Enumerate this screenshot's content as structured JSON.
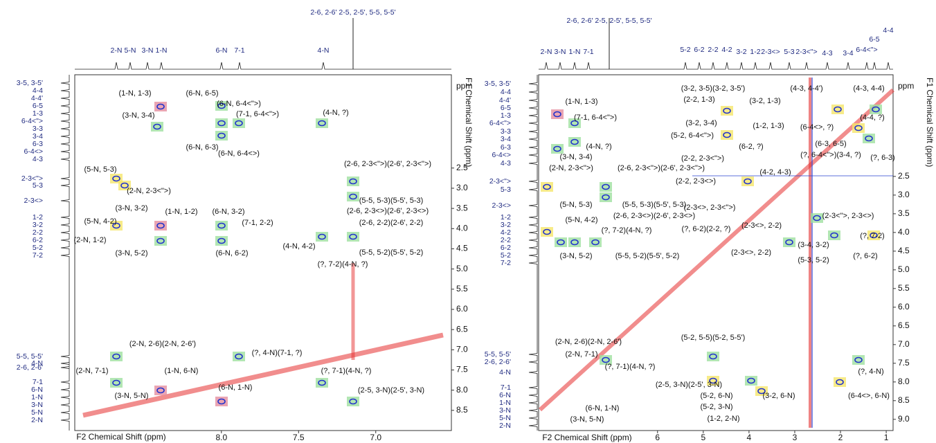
{
  "panels": [
    {
      "x_axis": {
        "title": "F2 Chemical Shift (ppm)",
        "lim": [
          8.95,
          6.51
        ],
        "ticks": [
          {
            "value": 8,
            "label": "8.0"
          },
          7.5,
          {
            "value": 7,
            "label": "7.0"
          }
        ]
      },
      "y_axis": {
        "title": "F1 Chemical Shift (ppm)",
        "unit": "ppm",
        "lim": [
          0.19,
          9.0
        ],
        "ticks": [
          2.5,
          {
            "value": 3,
            "label": "3.0"
          },
          3.5,
          {
            "value": 4,
            "label": "4.0"
          },
          4.5,
          {
            "value": 5,
            "label": "5.0"
          },
          5.5,
          {
            "value": 6,
            "label": "6.0"
          },
          6.5,
          {
            "value": 7,
            "label": "7.0"
          },
          7.5,
          {
            "value": 8,
            "label": "8.0"
          },
          8.5
        ]
      },
      "top_labels": [
        "2-6, 2-6' 2-5, 2-5', 5-5, 5-5'",
        "2-N",
        "5-N",
        "3-N",
        "1-N",
        "6-N",
        "7-1",
        "4-N"
      ],
      "side_labels": [
        "3-5, 3-5'",
        "4-4",
        "4-4'",
        "6-5",
        "1-3",
        "6-4<\">",
        "3-3",
        "3-4",
        "6-3",
        "6-4<>",
        "4-3",
        "2-3<\">",
        "5-3",
        "2-3<>",
        "1-2",
        "3-2",
        "2-2",
        "6-2",
        "5-2",
        "7-2",
        "5-5, 5-5'",
        "2-6, 2-6'",
        "4-N",
        "7-1",
        "6-N",
        "1-N",
        "3-N",
        "5-N",
        "2-N"
      ],
      "peak_labels": [
        "(1-N, 1-3)",
        "(3-N, 3-4)",
        "(6-N, 6-5)",
        "(6-N, 6-4<\">)",
        "(7-1, 6-4<\">)",
        "(4-N, ?)",
        "(6-N, 6-3)",
        "(6-N, 6-4<>)",
        "(2-6, 2-3<\">)(2-6', 2-3<\">)",
        "(5-N, 5-3)",
        "(2-N, 2-3<\">)",
        "(5-5, 5-3)(5-5', 5-3)",
        "(2-6, 2-3<>)(2-6', 2-3<>)",
        "(3-N, 3-2)",
        "(1-N, 1-2)",
        "(6-N, 3-2)",
        "(5-N, 4-2)",
        "(7-1, 2-2)",
        "(2-6, 2-2)(2-6', 2-2)",
        "(2-N, 1-2)",
        "(3-N, 5-2)",
        "(6-N, 6-2)",
        "(4-N, 4-2)",
        "(5-5, 5-2)(5-5', 5-2)",
        "(?, 7-2)(4-N, ?)",
        "(2-N, 2-6)(2-N, 2-6')",
        "(?, 4-N)(7-1, ?)",
        "(2-N, 7-1)",
        "(1-N, 6-N)",
        "(?, 7-1)(4-N, ?)",
        "(3-N, 5-N)",
        "(6-N, 1-N)",
        "(2-5, 3-N)(2-5', 3-N)"
      ]
    },
    {
      "x_axis": {
        "title": "F2 Chemical Shift (ppm)",
        "lim": [
          8.6,
          0.85
        ],
        "ticks": [
          6,
          5,
          4,
          3,
          2,
          1
        ]
      },
      "y_axis": {
        "title": "F1 Chemical Shift (ppm)",
        "unit": "ppm",
        "lim": [
          -0.22,
          9.3
        ],
        "ticks": [
          2.5,
          {
            "value": 3,
            "label": "3.0"
          },
          3.5,
          {
            "value": 4,
            "label": "4.0"
          },
          4.5,
          {
            "value": 5,
            "label": "5.0"
          },
          5.5,
          {
            "value": 6,
            "label": "6.0"
          },
          6.5,
          {
            "value": 7,
            "label": "7.0"
          },
          7.5,
          {
            "value": 8,
            "label": "8.0"
          },
          8.5,
          {
            "value": 9,
            "label": "9.0"
          }
        ]
      },
      "top_labels": [
        "2-6, 2-6' 2-5, 2-5', 5-5, 5-5'",
        "2-N",
        "3-N",
        "1-N",
        "7-1",
        "5-2",
        "6-2",
        "2-2",
        "4-2",
        "3-2",
        "1-2",
        "2-3<>",
        "5-3",
        "2-3<\">",
        "4-3",
        "3-4",
        "6-4<\">",
        "6-5",
        "4-4"
      ],
      "side_labels": [
        "3-5, 3-5'",
        "4-4",
        "4-4'",
        "6-5",
        "1-3",
        "6-4<\">",
        "3-3",
        "3-4",
        "6-3",
        "6-4<>",
        "4-3",
        "2-3<\">",
        "5-3",
        "2-3<>",
        "1-2",
        "3-2",
        "4-2",
        "2-2",
        "6-2",
        "5-2",
        "7-2",
        "5-5, 5-5'",
        "2-6, 2-6'",
        "4-N",
        "7-1",
        "6-N",
        "1-N",
        "3-N",
        "5-N",
        "2-N"
      ],
      "peak_labels": [
        "(1-N, 1-3)",
        "(7-1, 6-4<\">)",
        "(4-N, ?)",
        "(3-N, 3-4)",
        "(2-N, 2-3<\">)",
        "(2-6, 2-3<\">)(2-6', 2-3<\">)",
        "(5-N, 5-3)",
        "(5-5, 5-3)(5-5', 5-3)",
        "(2-6, 2-3<>)(2-6', 2-3<>)",
        "(5-N, 4-2)",
        "(?, 7-2)(4-N, ?)",
        "(3-N, 5-2)",
        "(5-5, 5-2)(5-5', 5-2)",
        "(3-2, 3-5)(3-2, 3-5')",
        "(2-2, 1-3)",
        "(3-2, 1-3)",
        "(4-3, 4-4')",
        "(4-3, 4-4)",
        "(1-2, 1-3)",
        "(3-2, 3-4)",
        "(5-2, 6-4<\">)",
        "(6-4<>, ?)",
        "(4-4, ?)",
        "(6-2, ?)",
        "(6-3, 6-5)",
        "(?, 6-3)",
        "(?, 6-4<\">)(3-4, ?)",
        "(2-2, 2-3<\">)",
        "(4-2, 4-3)",
        "(2-2, 2-3<>)",
        "(2-3<>, 2-3<\">)",
        "(2-3<\">, 2-3<>)",
        "(?, 6-2)(2-2, ?)",
        "(2-3<>, 2-2)",
        "(2-3<>, 2-2)",
        "(5-3, 5-2)",
        "(3-4, 3-2)",
        "(?, 6-2)",
        "(?, 7-2)",
        "(2-N, 2-6)(2-N, 2-6')",
        "(2-N, 7-1)",
        "(?, 7-1)(4-N, ?)",
        "(5-2, 5-5)(5-2, 5-5')",
        "(2-5, 3-N)(2-5', 3-N)",
        "(5-2, 6-N)",
        "(3-2, 6-N)",
        "(5-2, 3-N)",
        "(1-2, 2-N)",
        "(6-N, 1-N)",
        "(3-N, 5-N)",
        "(?, 4-N)",
        "(6-4<>, 6-N)"
      ]
    }
  ]
}
